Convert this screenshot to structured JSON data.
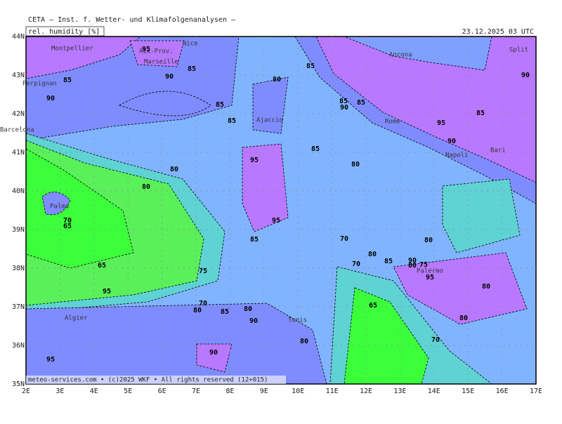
{
  "header": {
    "title": "CETA – Inst. f. Wetter- und Klimafolgenanalysen –",
    "variable": "rel. humidity [%]",
    "valid_time": "23.12.2025 03 UTC"
  },
  "footer": "meteo-services.com • (c)2025 WKF • All rights reserved (12+015)",
  "lat_labels": [
    "44N",
    "43N",
    "42N",
    "41N",
    "40N",
    "39N",
    "38N",
    "37N",
    "36N",
    "35N"
  ],
  "lon_labels": [
    "2E",
    "3E",
    "4E",
    "5E",
    "6E",
    "7E",
    "8E",
    "9E",
    "10E",
    "11E",
    "12E",
    "13E",
    "14E",
    "15E",
    "16E",
    "17E"
  ],
  "cities": [
    "Montpellier",
    "Nice",
    "Aix-Prov.",
    "Marseille",
    "Perpignan",
    "Barcelona",
    "Ajaccio",
    "Ancona",
    "Split",
    "Rome",
    "Bari",
    "Napoli",
    "Palma",
    "Palermo",
    "Tunis",
    "Algier"
  ],
  "contour_labels": [
    95,
    85,
    90,
    85,
    90,
    85,
    85,
    85,
    95,
    95,
    80,
    85,
    90,
    85,
    95,
    90,
    85,
    80,
    80,
    80,
    85,
    70,
    65,
    65,
    70,
    75,
    80,
    85,
    90,
    80,
    70,
    65,
    95,
    75,
    70,
    80,
    80,
    80,
    80,
    85,
    70,
    95,
    90,
    90,
    80,
    95,
    90,
    85,
    80
  ]
}
